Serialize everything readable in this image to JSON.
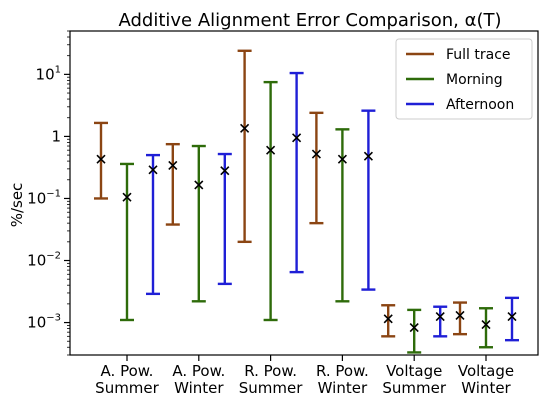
{
  "chart_data": {
    "type": "errorbar",
    "title": "Additive Alignment Error Comparison, α(T)",
    "ylabel": "%/sec",
    "xlabel": "",
    "yscale": "log",
    "ylim": [
      0.0003,
      50
    ],
    "ytick_values": [
      0.001,
      0.01,
      0.1,
      1,
      10
    ],
    "ytick_labels": [
      {
        "base": "10",
        "exp": "−3"
      },
      {
        "base": "10",
        "exp": "−2"
      },
      {
        "base": "10",
        "exp": "−1"
      },
      {
        "base": "1",
        "exp": ""
      },
      {
        "base": "10",
        "exp": "1"
      }
    ],
    "categories": [
      [
        "A. Pow.",
        "Summer"
      ],
      [
        "A. Pow.",
        "Winter"
      ],
      [
        "R. Pow.",
        "Summer"
      ],
      [
        "R. Pow.",
        "Winter"
      ],
      [
        "Voltage",
        "Summer"
      ],
      [
        "Voltage",
        "Winter"
      ]
    ],
    "legend_position": "top-right",
    "grid": false,
    "marker": "x",
    "series": [
      {
        "name": "Full trace",
        "color": "#8B4513",
        "values": [
          0.43,
          0.34,
          1.35,
          0.52,
          0.00115,
          0.0013
        ],
        "lower": [
          0.1,
          0.038,
          0.02,
          0.04,
          0.0006,
          0.00065
        ],
        "upper": [
          1.65,
          0.75,
          24,
          2.4,
          0.0019,
          0.0021
        ]
      },
      {
        "name": "Morning",
        "color": "#2E6B0A",
        "values": [
          0.105,
          0.165,
          0.6,
          0.43,
          0.00083,
          0.00093
        ],
        "lower": [
          0.0011,
          0.0022,
          0.0011,
          0.0022,
          0.00033,
          0.0004
        ],
        "upper": [
          0.36,
          0.7,
          7.5,
          1.3,
          0.0016,
          0.0017
        ]
      },
      {
        "name": "Afternoon",
        "color": "#1F1FD6",
        "values": [
          0.29,
          0.28,
          0.95,
          0.48,
          0.00125,
          0.00125
        ],
        "lower": [
          0.0029,
          0.0042,
          0.0065,
          0.0034,
          0.0006,
          0.00052
        ],
        "upper": [
          0.5,
          0.52,
          10.5,
          2.6,
          0.0018,
          0.0025
        ]
      }
    ]
  }
}
